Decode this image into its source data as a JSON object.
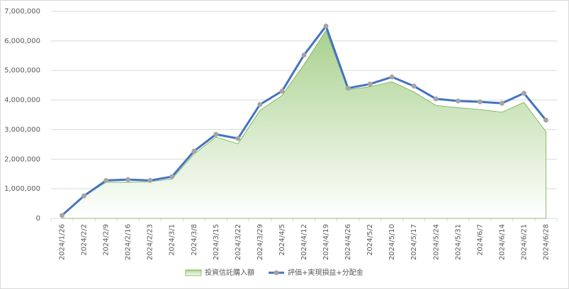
{
  "chart_data": {
    "type": "combo",
    "categories": [
      "2024/1/26",
      "2024/2/2",
      "2024/2/9",
      "2024/2/16",
      "2024/2/23",
      "2024/3/1",
      "2024/3/8",
      "2024/3/15",
      "2024/3/22",
      "2024/3/29",
      "2024/4/5",
      "2024/4/12",
      "2024/4/19",
      "2024/4/26",
      "2024/5/2",
      "2024/5/10",
      "2024/5/17",
      "2024/5/24",
      "2024/5/31",
      "2024/6/7",
      "2024/6/14",
      "2024/6/21",
      "2024/6/28"
    ],
    "series": [
      {
        "name": "投資信託購入額",
        "type": "area",
        "color": "#70ad47",
        "values": [
          100000,
          750000,
          1220000,
          1220000,
          1240000,
          1330000,
          2170000,
          2750000,
          2520000,
          3650000,
          4150000,
          5200000,
          6350000,
          4350000,
          4450000,
          4620000,
          4270000,
          3820000,
          3740000,
          3680000,
          3590000,
          3920000,
          2930000
        ]
      },
      {
        "name": "評価+実現損益+分配金",
        "type": "line",
        "color": "#4472c4",
        "marker_color": "#a5a5a5",
        "values": [
          100000,
          760000,
          1280000,
          1310000,
          1280000,
          1410000,
          2270000,
          2840000,
          2700000,
          3850000,
          4300000,
          5520000,
          6500000,
          4400000,
          4540000,
          4780000,
          4470000,
          4040000,
          3970000,
          3940000,
          3890000,
          4230000,
          3320000
        ]
      }
    ],
    "ylim": [
      0,
      7000000
    ],
    "yticks": [
      0,
      {
        "value": 1000000,
        "label": "1,000,000"
      },
      {
        "value": 2000000,
        "label": "2,000,000"
      },
      {
        "value": 3000000,
        "label": "3,000,000"
      },
      {
        "value": 4000000,
        "label": "4,000,000"
      },
      {
        "value": 5000000,
        "label": "5,000,000"
      },
      {
        "value": 6000000,
        "label": "6,000,000"
      },
      {
        "value": 7000000,
        "label": "7,000,000"
      }
    ],
    "grid": true,
    "legend": "bottom"
  }
}
